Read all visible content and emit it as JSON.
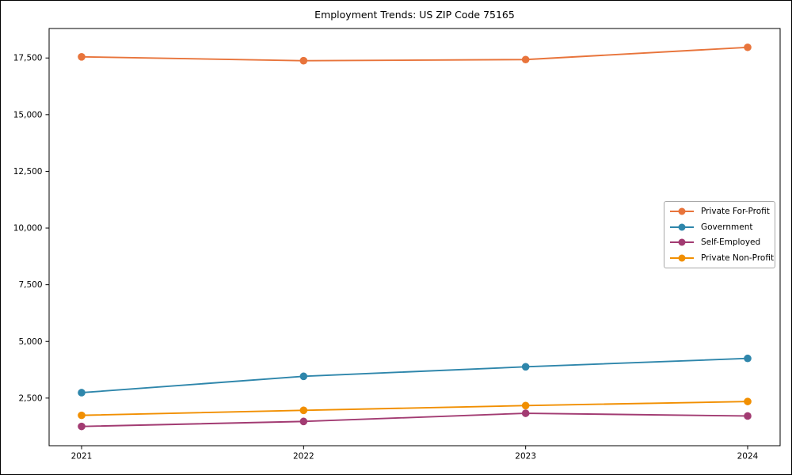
{
  "figure": {
    "background": "#ffffff",
    "border_color": "#000000",
    "axis_color": "#000000"
  },
  "chart_data": {
    "type": "line",
    "title": "Employment Trends: US ZIP Code 75165",
    "x": [
      2021,
      2022,
      2023,
      2024
    ],
    "xtick_labels": [
      "2021",
      "2022",
      "2023",
      "2024"
    ],
    "yticks": [
      2500,
      5000,
      7500,
      10000,
      12500,
      15000,
      17500
    ],
    "ytick_labels": [
      "2,500",
      "5,000",
      "7,500",
      "10,000",
      "12,500",
      "15,000",
      "17,500"
    ],
    "ylim": [
      400,
      18800
    ],
    "grid": false,
    "legend_position": "center-right",
    "marker": "circle",
    "series": [
      {
        "name": "Private For-Profit",
        "color": "#E8743B",
        "values": [
          17550,
          17380,
          17430,
          17970
        ]
      },
      {
        "name": "Government",
        "color": "#2E86AB",
        "values": [
          2740,
          3460,
          3880,
          4250
        ]
      },
      {
        "name": "Self-Employed",
        "color": "#A23B72",
        "values": [
          1250,
          1470,
          1830,
          1710
        ]
      },
      {
        "name": "Private Non-Profit",
        "color": "#F18F01",
        "values": [
          1740,
          1960,
          2170,
          2350
        ]
      }
    ]
  }
}
